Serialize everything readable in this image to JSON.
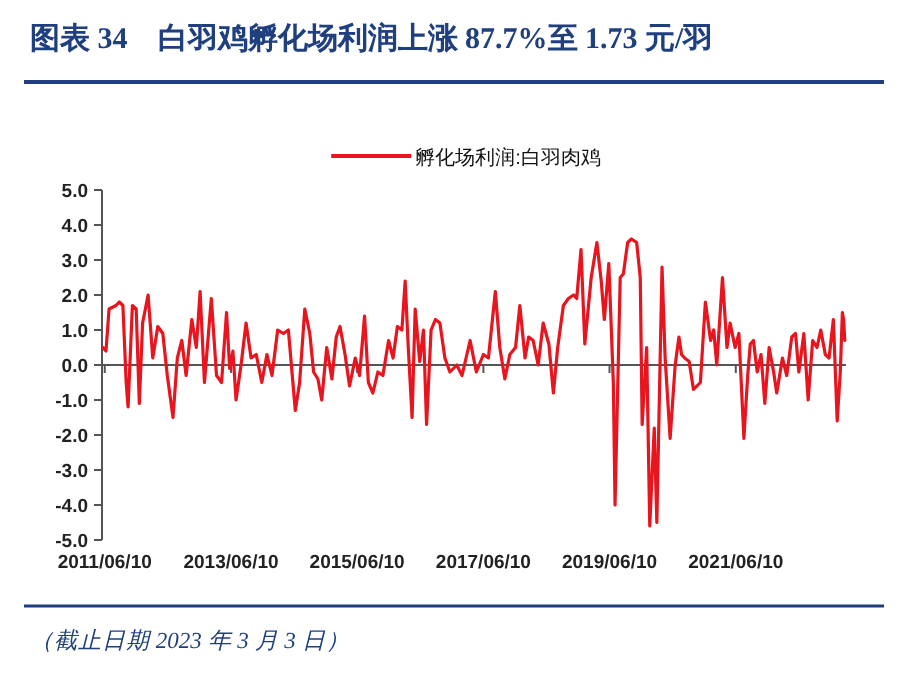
{
  "chart_data": {
    "type": "line",
    "title": "图表 34　白羽鸡孵化场利润上涨 87.7%至 1.73 元/羽",
    "annotations": [
      "（截止日期 2023 年 3 月 3 日）"
    ],
    "xlim": [
      "2011-05-25",
      "2023-03-10"
    ],
    "xticks": [
      {
        "value": "2011-06-10",
        "label": "2011/06/10"
      },
      {
        "value": "2013-06-10",
        "label": "2013/06/10"
      },
      {
        "value": "2015-06-10",
        "label": "2015/06/10"
      },
      {
        "value": "2017-06-10",
        "label": "2017/06/10"
      },
      {
        "value": "2019-06-10",
        "label": "2019/06/10"
      },
      {
        "value": "2021-06-10",
        "label": "2021/06/10"
      }
    ],
    "ylim": [
      -5,
      5
    ],
    "yticks": [
      {
        "value": 5,
        "label": "5.0"
      },
      {
        "value": 4,
        "label": "4.0"
      },
      {
        "value": 3,
        "label": "3.0"
      },
      {
        "value": 2,
        "label": "2.0"
      },
      {
        "value": 1,
        "label": "1.0"
      },
      {
        "value": 0,
        "label": "0.0"
      },
      {
        "value": -1,
        "label": "-1.0"
      },
      {
        "value": -2,
        "label": "-2.0"
      },
      {
        "value": -3,
        "label": "-3.0"
      },
      {
        "value": -4,
        "label": "-4.0"
      },
      {
        "value": -5,
        "label": "-5.0"
      }
    ],
    "ref_lines": [
      {
        "axis": "y",
        "value": 0,
        "color": "#555555"
      }
    ],
    "legend": "top",
    "marker": "none",
    "line_style": "solid",
    "series": [
      {
        "name": "孵化场利润:白羽肉鸡",
        "color": "#e8141e",
        "x": [
          "2011-05-30",
          "2011-06-17",
          "2011-07-05",
          "2011-08-14",
          "2011-09-02",
          "2011-09-23",
          "2011-10-12",
          "2011-10-23",
          "2011-11-17",
          "2011-12-09",
          "2011-12-27",
          "2012-01-15",
          "2012-02-16",
          "2012-03-14",
          "2012-04-12",
          "2012-05-11",
          "2012-06-06",
          "2012-07-09",
          "2012-08-03",
          "2012-08-29",
          "2012-09-23",
          "2012-10-26",
          "2012-11-21",
          "2012-12-13",
          "2013-01-07",
          "2013-02-16",
          "2013-03-18",
          "2013-04-16",
          "2013-05-15",
          "2013-06-02",
          "2013-06-21",
          "2013-07-09",
          "2013-08-07",
          "2013-09-05",
          "2013-10-04",
          "2013-11-03",
          "2013-12-05",
          "2014-01-04",
          "2014-02-02",
          "2014-03-07",
          "2014-04-09",
          "2014-05-08",
          "2014-06-17",
          "2014-07-12",
          "2014-08-11",
          "2014-09-09",
          "2014-10-01",
          "2014-10-26",
          "2014-11-17",
          "2014-12-16",
          "2015-01-15",
          "2015-02-09",
          "2015-03-03",
          "2015-04-01",
          "2015-04-27",
          "2015-05-30",
          "2015-06-24",
          "2015-07-23",
          "2015-08-14",
          "2015-09-09",
          "2015-10-08",
          "2015-11-06",
          "2015-12-09",
          "2016-01-04",
          "2016-01-29",
          "2016-02-24",
          "2016-03-14",
          "2016-04-01",
          "2016-04-23",
          "2016-05-11",
          "2016-06-06",
          "2016-06-28",
          "2016-07-16",
          "2016-08-11",
          "2016-09-05",
          "2016-10-01",
          "2016-10-30",
          "2016-11-28",
          "2017-01-07",
          "2017-02-06",
          "2017-03-25",
          "2017-04-30",
          "2017-06-10",
          "2017-07-09",
          "2017-08-18",
          "2017-09-13",
          "2017-10-12",
          "2017-11-10",
          "2017-12-13",
          "2018-01-07",
          "2018-02-06",
          "2018-02-27",
          "2018-03-25",
          "2018-04-23",
          "2018-05-22",
          "2018-06-24",
          "2018-07-20",
          "2018-08-14",
          "2018-09-16",
          "2018-10-15",
          "2018-11-14",
          "2018-12-02",
          "2018-12-27",
          "2019-01-18",
          "2019-02-24",
          "2019-03-29",
          "2019-04-23",
          "2019-05-11",
          "2019-06-06",
          "2019-07-02",
          "2019-07-12",
          "2019-08-11",
          "2019-08-29",
          "2019-09-23",
          "2019-10-15",
          "2019-11-14",
          "2019-12-05",
          "2019-12-16",
          "2020-01-11",
          "2020-01-29",
          "2020-02-24",
          "2020-03-10",
          "2020-04-09",
          "2020-04-27",
          "2020-05-26",
          "2020-06-24",
          "2020-07-16",
          "2020-07-31",
          "2020-08-18",
          "2020-09-13",
          "2020-10-08",
          "2020-11-17",
          "2020-12-16",
          "2021-01-15",
          "2021-02-02",
          "2021-02-20",
          "2021-03-25",
          "2021-04-20",
          "2021-05-08",
          "2021-06-06",
          "2021-06-28",
          "2021-07-27",
          "2021-08-18",
          "2021-09-02",
          "2021-09-20",
          "2021-10-12",
          "2021-11-03",
          "2021-11-25",
          "2021-12-20",
          "2022-01-15",
          "2022-02-02",
          "2022-03-07",
          "2022-04-01",
          "2022-04-30",
          "2022-05-22",
          "2022-06-10",
          "2022-07-09",
          "2022-08-03",
          "2022-08-29",
          "2022-09-23",
          "2022-10-15",
          "2022-11-10",
          "2022-12-02",
          "2022-12-27",
          "2023-01-18",
          "2023-02-05",
          "2023-02-17",
          "2023-02-24",
          "2023-03-03"
        ],
        "values": [
          0.5,
          0.4,
          1.6,
          1.7,
          1.8,
          1.7,
          -0.5,
          -1.2,
          1.7,
          1.6,
          -1.1,
          1.2,
          2.0,
          0.2,
          1.1,
          0.9,
          -0.3,
          -1.5,
          0.2,
          0.7,
          -0.3,
          1.3,
          0.5,
          2.1,
          -0.5,
          1.9,
          -0.3,
          -0.5,
          1.5,
          -0.1,
          0.4,
          -1.0,
          0.0,
          1.2,
          0.2,
          0.3,
          -0.5,
          0.3,
          -0.3,
          1.0,
          0.9,
          1.0,
          -1.3,
          -0.5,
          1.6,
          0.9,
          -0.2,
          -0.4,
          -1.0,
          0.5,
          -0.4,
          0.8,
          1.1,
          0.3,
          -0.6,
          0.2,
          -0.3,
          1.4,
          -0.5,
          -0.8,
          -0.2,
          -0.3,
          0.7,
          0.2,
          1.1,
          1.0,
          2.4,
          0.5,
          -1.5,
          1.6,
          0.1,
          1.0,
          -1.7,
          1.0,
          1.3,
          1.2,
          0.2,
          -0.2,
          0.0,
          -0.3,
          0.7,
          -0.2,
          0.3,
          0.2,
          2.1,
          0.5,
          -0.4,
          0.3,
          0.5,
          1.7,
          0.2,
          0.8,
          0.7,
          0.0,
          1.2,
          0.6,
          -0.8,
          0.5,
          1.7,
          1.9,
          2.0,
          1.9,
          3.3,
          0.6,
          2.5,
          3.5,
          2.4,
          1.3,
          2.9,
          -0.5,
          -4.0,
          2.5,
          2.6,
          3.5,
          3.6,
          3.5,
          2.5,
          -1.7,
          0.5,
          -4.6,
          -1.8,
          -4.5,
          2.8,
          0.2,
          -2.1,
          0.0,
          0.8,
          0.3,
          0.2,
          0.1,
          -0.7,
          -0.5,
          1.8,
          0.7,
          1.0,
          0.0,
          2.5,
          0.5,
          1.2,
          0.5,
          0.9,
          -2.1,
          -0.3,
          0.6,
          0.7,
          -0.2,
          0.3,
          -1.1,
          0.5,
          -0.2,
          -0.8,
          0.2,
          -0.3,
          0.8,
          0.9,
          -0.2,
          0.9,
          -1.0,
          0.7,
          0.5,
          1.0,
          0.3,
          0.2,
          1.3,
          -1.6,
          -0.2,
          1.5,
          1.3,
          0.7
        ]
      }
    ]
  }
}
